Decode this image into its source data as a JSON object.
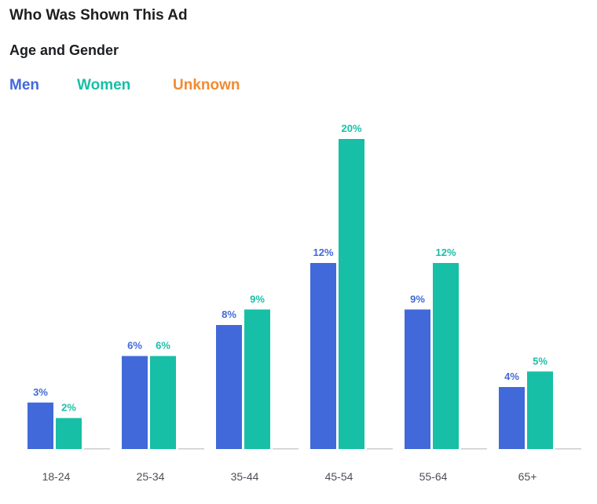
{
  "title": "Who Was Shown This Ad",
  "subtitle": "Age and Gender",
  "chart_data": {
    "type": "bar",
    "categories": [
      "18-24",
      "25-34",
      "35-44",
      "45-54",
      "55-64",
      "65+"
    ],
    "series": [
      {
        "name": "Men",
        "color": "#4169d9",
        "values": [
          3,
          6,
          8,
          12,
          9,
          4
        ],
        "labels": [
          "3%",
          "6%",
          "8%",
          "12%",
          "9%",
          "4%"
        ]
      },
      {
        "name": "Women",
        "color": "#17bfa6",
        "values": [
          2,
          6,
          9,
          20,
          12,
          5
        ],
        "labels": [
          "2%",
          "6%",
          "9%",
          "20%",
          "12%",
          "5%"
        ]
      },
      {
        "name": "Unknown",
        "color": "#f28b30",
        "values": [
          0,
          0,
          0,
          0,
          0,
          0
        ],
        "labels": [
          "",
          "",
          "",
          "",
          "",
          ""
        ]
      }
    ],
    "value_unit": "%",
    "ylim": [
      0,
      20
    ],
    "grid": false,
    "legend_position": "top-left",
    "baseline_color": "#cccccc"
  }
}
